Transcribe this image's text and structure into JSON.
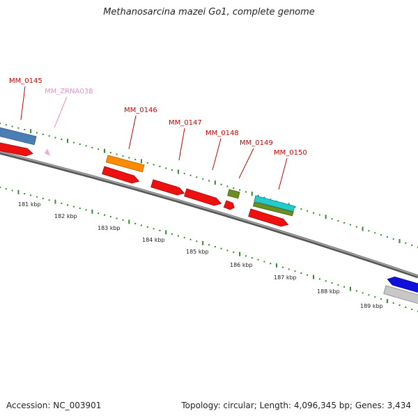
{
  "title": "Methanosarcina mazei Go1, complete genome",
  "accession": "Accession: NC_003901",
  "summary": "Topology: circular; Length: 4,096,345 bp; Genes: 3,434",
  "colors": {
    "backbone": "#808080",
    "tick": "#2e8b2e",
    "gene_label": "#cc0000",
    "rna_label": "#f08cc8"
  },
  "ruler": {
    "labels": [
      "181 kbp",
      "182 kbp",
      "183 kbp",
      "184 kbp",
      "185 kbp",
      "186 kbp",
      "187 kbp",
      "188 kbp",
      "189 kbp"
    ]
  },
  "labels": [
    {
      "text": "MM_0145",
      "kind": "gene"
    },
    {
      "text": "MM_ZRNA038",
      "kind": "rna"
    },
    {
      "text": "MM_0146",
      "kind": "gene"
    },
    {
      "text": "MM_0147",
      "kind": "gene"
    },
    {
      "text": "MM_0148",
      "kind": "gene"
    },
    {
      "text": "MM_0149",
      "kind": "gene"
    },
    {
      "text": "MM_0150",
      "kind": "gene"
    }
  ],
  "features": [
    {
      "name": "blue-feature",
      "color": "#4a7fb5",
      "strand": "+"
    },
    {
      "name": "red-cds-left",
      "color": "#ee1111",
      "strand": "+"
    },
    {
      "name": "zrna038-arrow",
      "color": "#f8a8d8",
      "strand": "+"
    },
    {
      "name": "orange-feature",
      "color": "#ff8c00",
      "strand": "+"
    },
    {
      "name": "red-cds-mm0146",
      "color": "#ee1111",
      "strand": "+"
    },
    {
      "name": "red-cds-mm0147",
      "color": "#ee1111",
      "strand": "+"
    },
    {
      "name": "red-cds-mm0148",
      "color": "#ee1111",
      "strand": "+"
    },
    {
      "name": "green-feature-mm0149",
      "color": "#6b8e23",
      "strand": "+"
    },
    {
      "name": "red-cds-mm0149",
      "color": "#ee1111",
      "strand": "+"
    },
    {
      "name": "cyan-feature",
      "color": "#22cccc",
      "strand": "+"
    },
    {
      "name": "green-feature-mm0150",
      "color": "#6b8e23",
      "strand": "+"
    },
    {
      "name": "red-cds-mm0150",
      "color": "#ee1111",
      "strand": "+"
    },
    {
      "name": "blue-cds-right",
      "color": "#1010dd",
      "strand": "-"
    },
    {
      "name": "grey-feature-right",
      "color": "#c8c8c8",
      "strand": "+"
    }
  ]
}
